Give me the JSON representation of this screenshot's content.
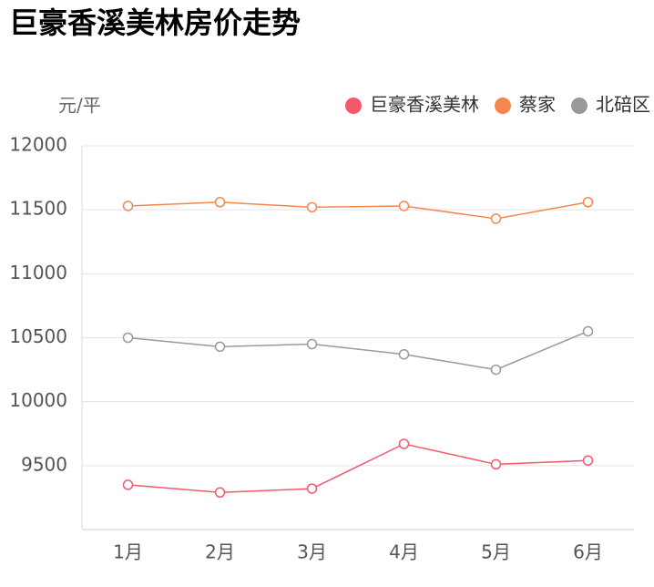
{
  "chart_data": {
    "type": "line",
    "title": "巨豪香溪美林房价走势",
    "y_label": "元/平",
    "categories": [
      "1月",
      "2月",
      "3月",
      "4月",
      "5月",
      "6月"
    ],
    "series": [
      {
        "name": "巨豪香溪美林",
        "color": "#f2596b",
        "values": [
          9350,
          9290,
          9320,
          9670,
          9510,
          9540
        ]
      },
      {
        "name": "蔡家",
        "color": "#f5874e",
        "values": [
          11530,
          11560,
          11520,
          11530,
          11430,
          11560
        ]
      },
      {
        "name": "北碚区",
        "color": "#999999",
        "values": [
          10500,
          10430,
          10450,
          10370,
          10250,
          10550
        ]
      }
    ],
    "ylim": [
      9000,
      12000
    ],
    "yticks": [
      9500,
      10000,
      10500,
      11000,
      11500,
      12000
    ],
    "grid": true
  }
}
